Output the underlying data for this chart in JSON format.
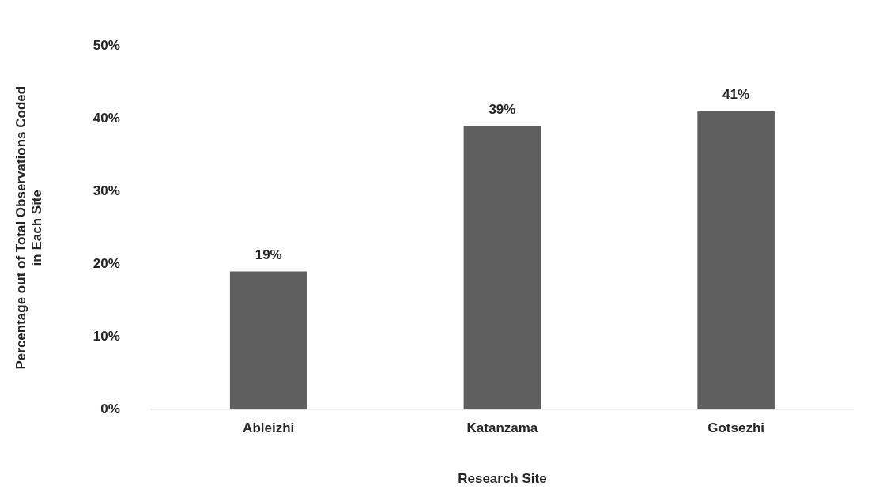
{
  "chart_data": {
    "type": "bar",
    "xlabel": "Research Site",
    "ylabel": "Percentage out of Total Observations Coded\nin Each Site",
    "categories": [
      "Ableizhi",
      "Katanzama",
      "Gotsezhi"
    ],
    "values": [
      19,
      39,
      41
    ],
    "color": "#5f5f5f",
    "value_labels": [
      "19%",
      "39%",
      "41%"
    ],
    "ylim": [
      0,
      50
    ],
    "yticks": [
      {
        "value": 0,
        "label": "0%"
      },
      {
        "value": 10,
        "label": "10%"
      },
      {
        "value": 20,
        "label": "20%"
      },
      {
        "value": 30,
        "label": "30%"
      },
      {
        "value": 40,
        "label": "40%"
      },
      {
        "value": 50,
        "label": "50%"
      }
    ],
    "grid": false,
    "legend": false
  }
}
